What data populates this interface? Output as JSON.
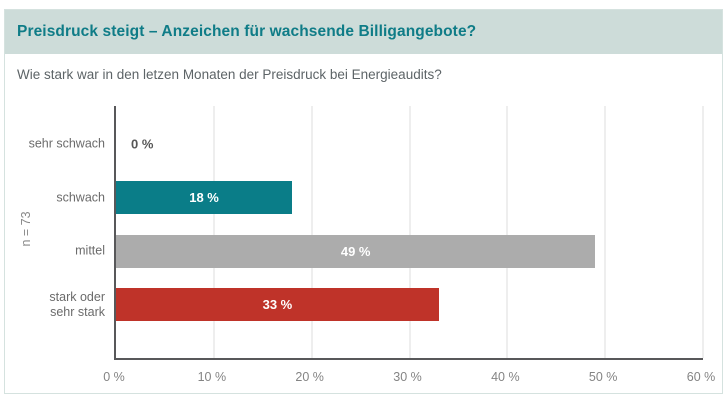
{
  "header": {
    "title": "Preisdruck steigt – Anzeichen für wachsende Billigangebote?"
  },
  "subtitle": "Wie stark war in den letzen Monaten der Preisdruck bei Energieaudits?",
  "colors": {
    "header_bg": "#cddcd9",
    "title_text": "#0f7c87",
    "bar_teal": "#0a7d88",
    "bar_gray": "#acacac",
    "bar_red": "#bf3329",
    "axis": "#58585a",
    "gridline": "#dcdcdc"
  },
  "chart_data": {
    "type": "bar",
    "orientation": "horizontal",
    "title": "Preisdruck steigt – Anzeichen für wachsende Billigangebote?",
    "subtitle": "Wie stark war in den letzen Monaten der Preisdruck bei Energieaudits?",
    "categories": [
      "sehr schwach",
      "schwach",
      "mittel",
      "stark oder\nsehr stark"
    ],
    "values": [
      0,
      18,
      49,
      33
    ],
    "value_labels": [
      "0 %",
      "18 %",
      "49 %",
      "33 %"
    ],
    "bar_colors": [
      "none",
      "#0a7d88",
      "#acacac",
      "#bf3329"
    ],
    "axis_label": "n = 73",
    "x_ticks": [
      "0 %",
      "10 %",
      "20 %",
      "30 %",
      "40 %",
      "50 %",
      "60 %"
    ],
    "xlim": [
      0,
      60
    ],
    "grid": true,
    "legend": false
  }
}
